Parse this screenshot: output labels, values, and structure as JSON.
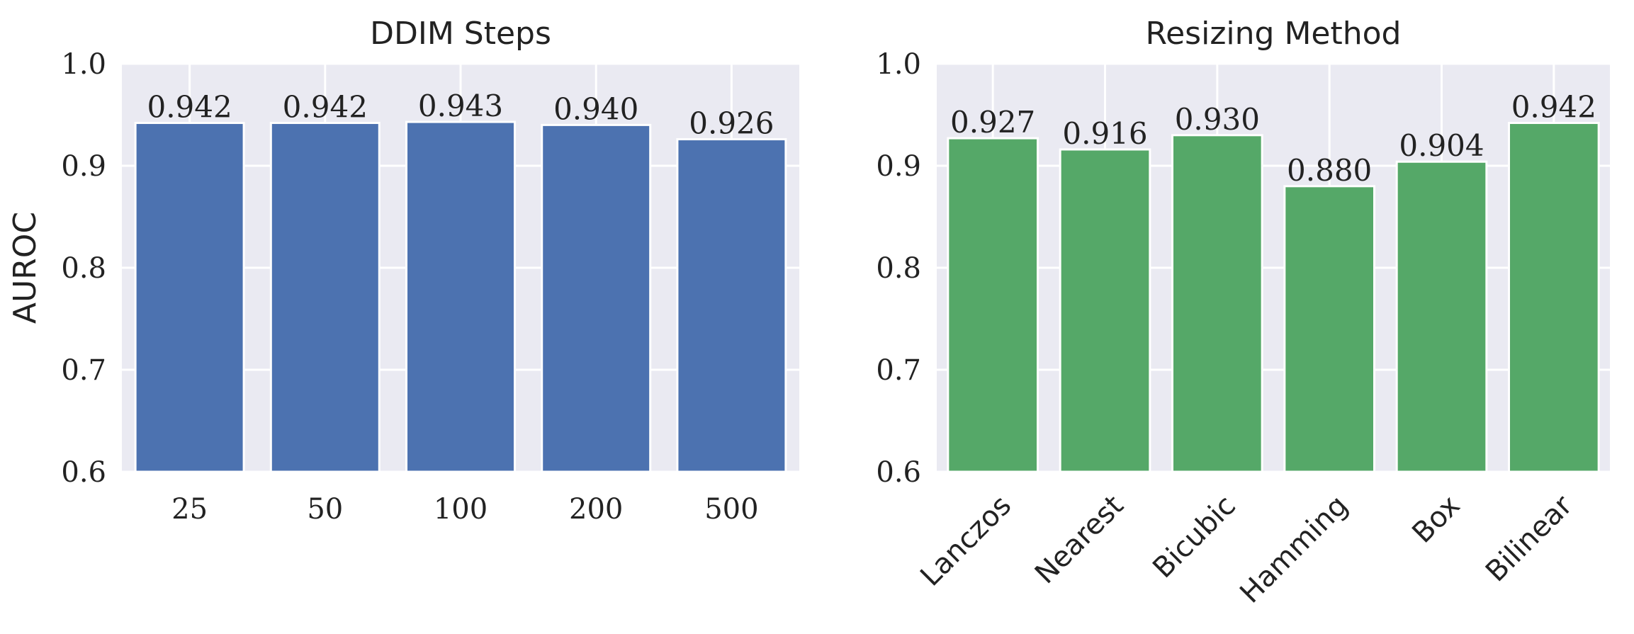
{
  "chart_data": [
    {
      "type": "bar",
      "title": "DDIM Steps",
      "xlabel": "",
      "ylabel": "AUROC",
      "categories": [
        "25",
        "50",
        "100",
        "200",
        "500"
      ],
      "values": [
        0.942,
        0.942,
        0.943,
        0.94,
        0.926
      ],
      "value_labels": [
        "0.942",
        "0.942",
        "0.943",
        "0.940",
        "0.926"
      ],
      "ylim": [
        0.6,
        1.0
      ],
      "yticks": [
        "0.6",
        "0.7",
        "0.8",
        "0.9",
        "1.0"
      ],
      "bar_color": "#4C72B0",
      "background_color": "#EAEAF2",
      "grid": true,
      "rotated_xticks": false
    },
    {
      "type": "bar",
      "title": "Resizing Method",
      "xlabel": "",
      "ylabel": "",
      "categories": [
        "Lanczos",
        "Nearest",
        "Bicubic",
        "Hamming",
        "Box",
        "Bilinear"
      ],
      "values": [
        0.927,
        0.916,
        0.93,
        0.88,
        0.904,
        0.942
      ],
      "value_labels": [
        "0.927",
        "0.916",
        "0.930",
        "0.880",
        "0.904",
        "0.942"
      ],
      "ylim": [
        0.6,
        1.0
      ],
      "yticks": [
        "0.6",
        "0.7",
        "0.8",
        "0.9",
        "1.0"
      ],
      "bar_color": "#55A868",
      "background_color": "#EAEAF2",
      "grid": true,
      "rotated_xticks": true
    }
  ]
}
